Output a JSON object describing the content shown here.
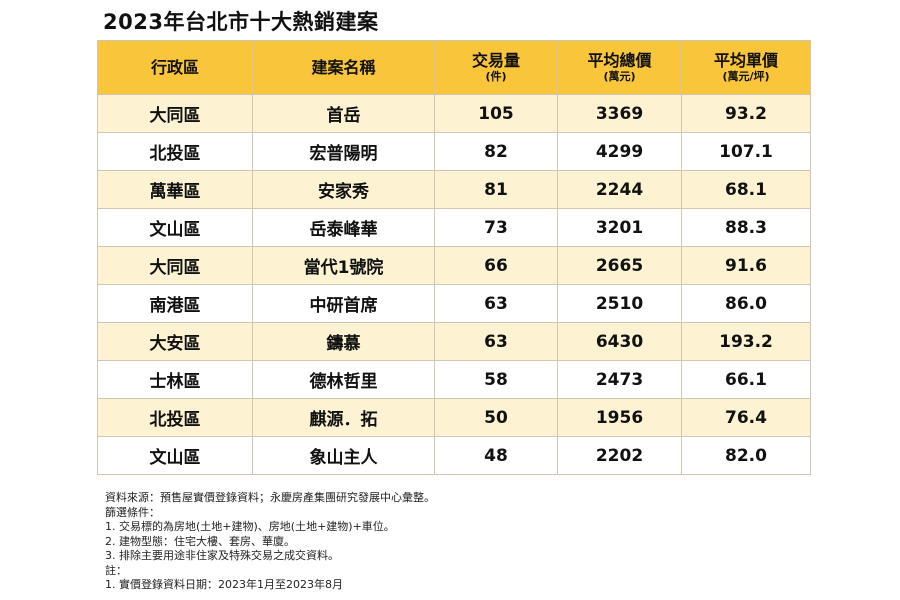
{
  "title": "2023年台北市十大熱銷建案",
  "table": {
    "headers": [
      {
        "label": "行政區",
        "unit": ""
      },
      {
        "label": "建案名稱",
        "unit": ""
      },
      {
        "label": "交易量",
        "unit": "(件)"
      },
      {
        "label": "平均總價",
        "unit": "(萬元)"
      },
      {
        "label": "平均單價",
        "unit": "(萬元/坪)"
      }
    ],
    "rows": [
      [
        "大同區",
        "首岳",
        "105",
        "3369",
        "93.2"
      ],
      [
        "北投區",
        "宏普陽明",
        "82",
        "4299",
        "107.1"
      ],
      [
        "萬華區",
        "安家秀",
        "81",
        "2244",
        "68.1"
      ],
      [
        "文山區",
        "岳泰峰華",
        "73",
        "3201",
        "88.3"
      ],
      [
        "大同區",
        "當代1號院",
        "66",
        "2665",
        "91.6"
      ],
      [
        "南港區",
        "中研首席",
        "63",
        "2510",
        "86.0"
      ],
      [
        "大安區",
        "鑄慕",
        "63",
        "6430",
        "193.2"
      ],
      [
        "士林區",
        "德林哲里",
        "58",
        "2473",
        "66.1"
      ],
      [
        "北投區",
        "麒源．拓",
        "50",
        "1956",
        "76.4"
      ],
      [
        "文山區",
        "象山主人",
        "48",
        "2202",
        "82.0"
      ]
    ]
  },
  "notes": [
    "資料來源：預售屋實價登錄資料；永慶房產集團研究發展中心彙整。",
    "篩選條件：",
    "1. 交易標的為房地(土地+建物)、房地(土地+建物)+車位。",
    "2. 建物型態：住宅大樓、套房、華廈。",
    "3. 排除主要用途非住家及特殊交易之成交資料。",
    "註：",
    "1. 實價登錄資料日期：2023年1月至2023年8月"
  ],
  "colors": {
    "header_bg": "#f9c53b",
    "row_odd_bg": "#fdf3d3",
    "row_even_bg": "#ffffff",
    "border": "#cfc7b4"
  }
}
